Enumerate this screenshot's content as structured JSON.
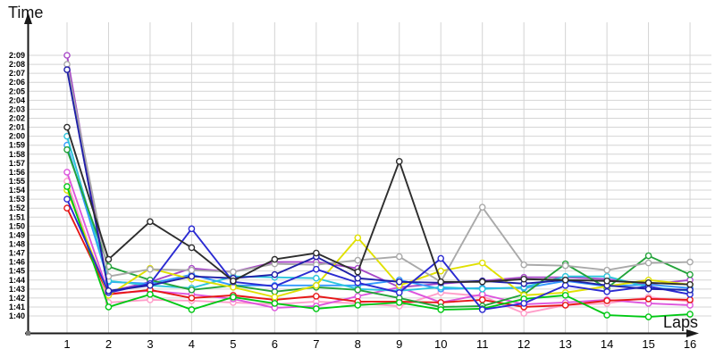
{
  "chart_data": {
    "type": "line",
    "title": "",
    "xlabel": "Laps",
    "ylabel": "Time",
    "x": [
      1,
      2,
      3,
      4,
      5,
      6,
      7,
      8,
      9,
      10,
      11,
      12,
      13,
      14,
      15,
      16
    ],
    "xticks": [
      "1",
      "2",
      "3",
      "4",
      "5",
      "6",
      "7",
      "8",
      "9",
      "10",
      "11",
      "12",
      "13",
      "14",
      "15",
      "16"
    ],
    "yticks": [
      "1:40",
      "1:41",
      "1:42",
      "1:43",
      "1:44",
      "1:45",
      "1:46",
      "1:47",
      "1:48",
      "1:49",
      "1:50",
      "1:51",
      "1:52",
      "1:53",
      "1:54",
      "1:55",
      "1:56",
      "1:57",
      "1:58",
      "1:59",
      "2:00",
      "2:01",
      "2:02",
      "2:03",
      "2:04",
      "2:05",
      "2:06",
      "2:07",
      "2:08",
      "2:09"
    ],
    "y_unit": "lap time m:ss, values stored as total seconds (1:40 = 100)",
    "ylim": [
      100,
      129
    ],
    "xlim": [
      1,
      16
    ],
    "grid": true,
    "legend": false,
    "series": [
      {
        "name": "purple",
        "color": "#a849c8",
        "values": [
          129.0,
          102.7,
          103.8,
          105.3,
          104.9,
          106.0,
          106.0,
          105.3,
          103.2,
          103.6,
          103.9,
          104.3,
          104.3,
          104.1,
          103.5,
          104.0
        ]
      },
      {
        "name": "pink",
        "color": "#ff9ec9",
        "values": [
          115.0,
          101.5,
          101.8,
          101.7,
          101.5,
          101.3,
          101.6,
          101.4,
          101.1,
          102.6,
          102.2,
          100.3,
          101.2,
          101.4,
          102.1,
          101.6
        ]
      },
      {
        "name": "magenta",
        "color": "#dd55dd",
        "values": [
          116.0,
          102.5,
          102.8,
          102.4,
          101.9,
          100.9,
          101.1,
          102.2,
          103.2,
          101.5,
          102.4,
          101.3,
          101.5,
          101.8,
          101.4,
          101.2
        ]
      },
      {
        "name": "light-blue",
        "color": "#3399ff",
        "values": [
          119.0,
          103.8,
          103.6,
          104.6,
          103.4,
          103.4,
          103.4,
          103.4,
          104.0,
          103.0,
          103.1,
          103.1,
          103.9,
          103.3,
          103.5,
          103.1
        ]
      },
      {
        "name": "cyan",
        "color": "#2cc5dc",
        "values": [
          120.0,
          103.9,
          103.4,
          103.1,
          104.4,
          104.3,
          104.2,
          103.0,
          102.8,
          103.2,
          103.0,
          103.2,
          104.4,
          104.4,
          103.2,
          102.8
        ]
      },
      {
        "name": "red",
        "color": "#e61717",
        "values": [
          112.0,
          102.4,
          102.9,
          102.0,
          102.3,
          101.8,
          102.2,
          101.6,
          101.6,
          101.5,
          101.8,
          101.0,
          101.2,
          101.7,
          101.9,
          101.8
        ]
      },
      {
        "name": "green",
        "color": "#23a33a",
        "values": [
          118.5,
          105.5,
          104.0,
          102.9,
          103.4,
          102.7,
          103.2,
          102.9,
          102.0,
          101.0,
          101.1,
          102.4,
          105.8,
          103.1,
          106.7,
          104.6
        ]
      },
      {
        "name": "yellow",
        "color": "#e0e000",
        "values": [
          114.0,
          102.3,
          105.3,
          104.1,
          103.2,
          102.1,
          103.4,
          108.7,
          103.4,
          105.0,
          105.9,
          102.3,
          102.6,
          103.3,
          104.0,
          103.5
        ]
      },
      {
        "name": "gray",
        "color": "#a9a9a9",
        "values": [
          128.0,
          104.4,
          105.2,
          105.1,
          104.9,
          105.8,
          105.7,
          106.2,
          106.6,
          103.8,
          112.1,
          105.7,
          105.6,
          105.1,
          105.9,
          106.0
        ]
      },
      {
        "name": "bright-green",
        "color": "#00c814",
        "values": [
          114.4,
          101.0,
          102.4,
          100.7,
          102.1,
          101.4,
          100.8,
          101.2,
          101.5,
          100.7,
          100.8,
          101.9,
          102.3,
          100.1,
          99.9,
          100.2
        ]
      },
      {
        "name": "blue",
        "color": "#2a2ad2",
        "values": [
          113.0,
          102.6,
          103.6,
          109.7,
          103.8,
          103.3,
          105.2,
          103.7,
          102.6,
          106.4,
          100.7,
          101.4,
          103.4,
          102.7,
          103.3,
          102.4
        ]
      },
      {
        "name": "navy",
        "color": "#2020a8",
        "values": [
          127.4,
          102.8,
          103.4,
          104.4,
          104.2,
          104.6,
          106.6,
          104.2,
          103.8,
          103.7,
          103.9,
          103.6,
          104.0,
          103.4,
          103.0,
          102.9
        ]
      },
      {
        "name": "black",
        "color": "#2d2d2d",
        "values": [
          121.0,
          106.3,
          110.5,
          107.6,
          103.9,
          106.3,
          107.0,
          104.9,
          117.2,
          103.8,
          103.8,
          104.1,
          104.0,
          103.9,
          103.7,
          103.5
        ]
      }
    ],
    "style": {
      "grid_color": "#d4d4d4",
      "axis_color": "#1a1a1a",
      "marker": "open-circle"
    }
  }
}
